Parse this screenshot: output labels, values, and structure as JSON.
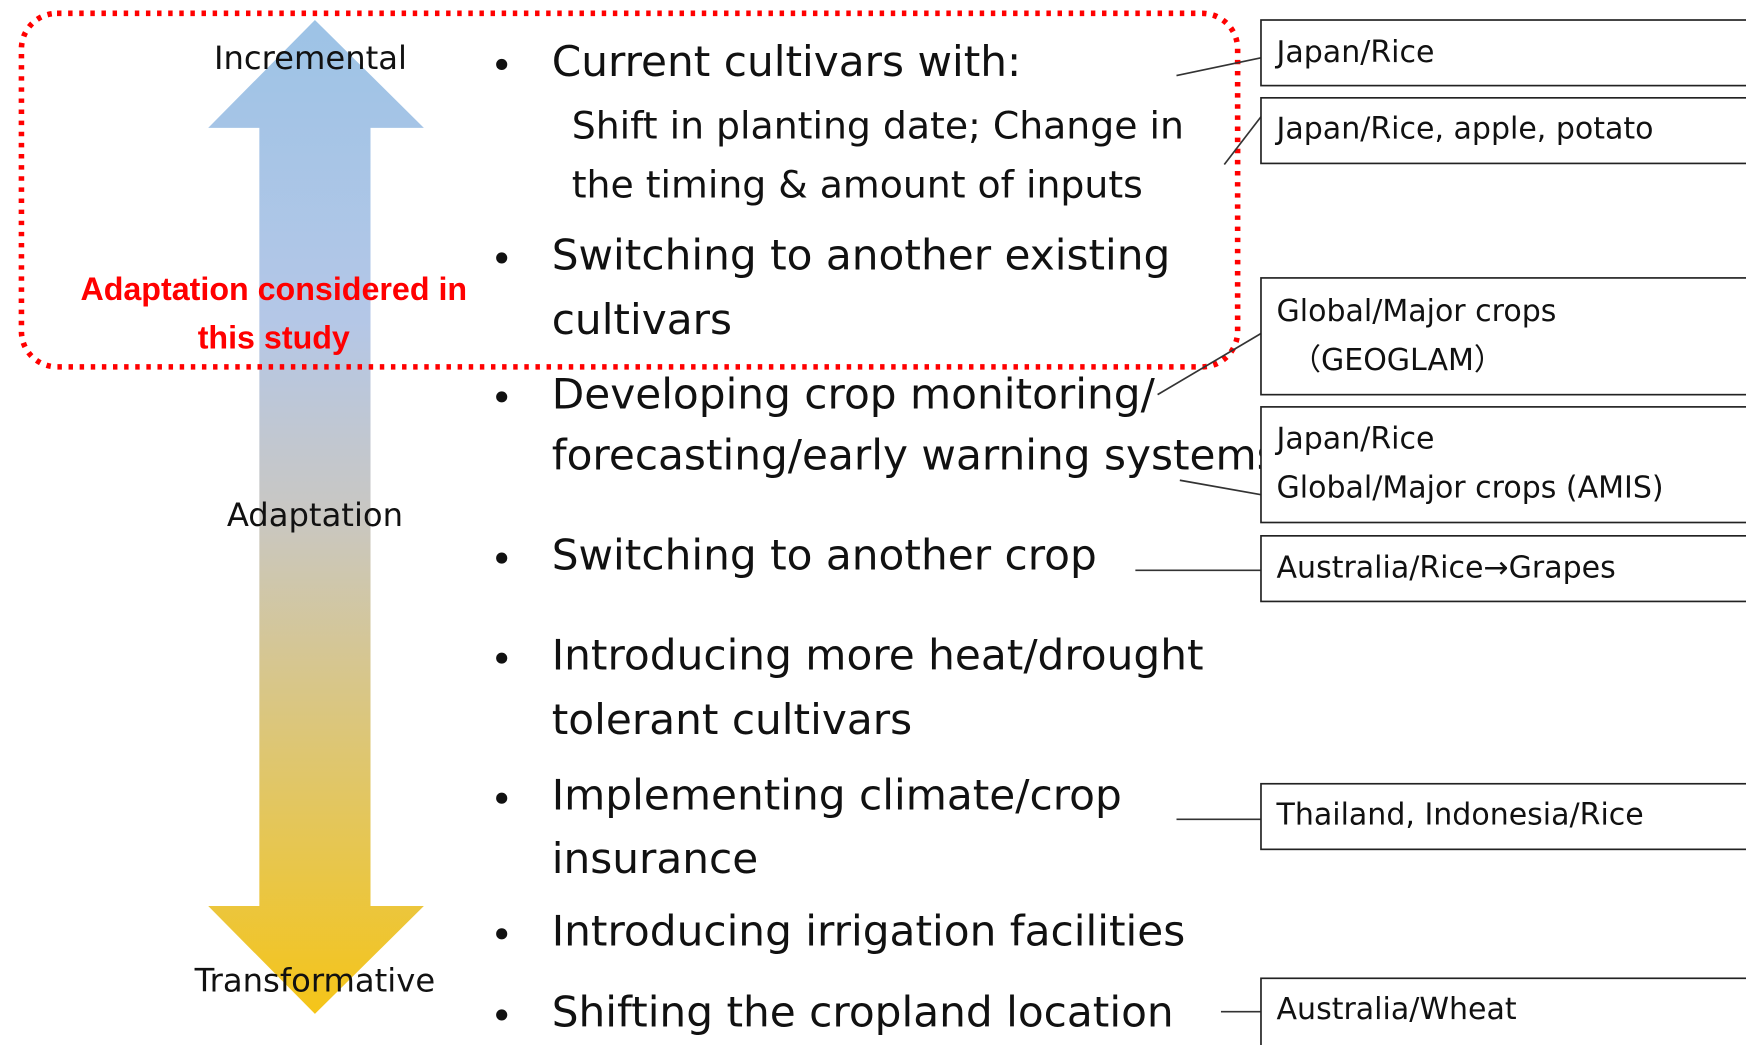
{
  "axis": {
    "top": "Incremental",
    "middle": "Adaptation",
    "bottom": "Transformative"
  },
  "highlight": {
    "lines": [
      "Adaptation considered in",
      "this study"
    ]
  },
  "measures": [
    {
      "lines": [
        "Current cultivars with:"
      ],
      "sub_lines": [
        "Shift in planting date; Change in",
        "the timing & amount of inputs"
      ]
    },
    {
      "lines": [
        "Switching to another existing",
        "cultivars"
      ]
    },
    {
      "lines": [
        "Developing crop monitoring/",
        "forecasting/early  warning systems"
      ]
    },
    {
      "lines": [
        "Switching to another crop"
      ]
    },
    {
      "lines": [
        "Introducing more heat/drought",
        "tolerant cultivars"
      ]
    },
    {
      "lines": [
        "Implementing climate/crop",
        "insurance"
      ]
    },
    {
      "lines": [
        "Introducing irrigation facilities"
      ]
    },
    {
      "lines": [
        "Shifting the cropland location"
      ]
    }
  ],
  "examples": [
    {
      "lines": [
        "Japan/Rice"
      ]
    },
    {
      "lines": [
        "Japan/Rice, apple, potato"
      ]
    },
    {
      "lines": [
        "Global/Major crops",
        "（GEOGLAM）"
      ]
    },
    {
      "lines": [
        "Japan/Rice",
        "Global/Major crops (AMIS)"
      ]
    },
    {
      "lines": [
        "Australia/Rice→Grapes"
      ]
    },
    {
      "lines": [
        "Thailand, Indonesia/Rice"
      ]
    },
    {
      "lines": [
        "Australia/Wheat"
      ]
    }
  ]
}
